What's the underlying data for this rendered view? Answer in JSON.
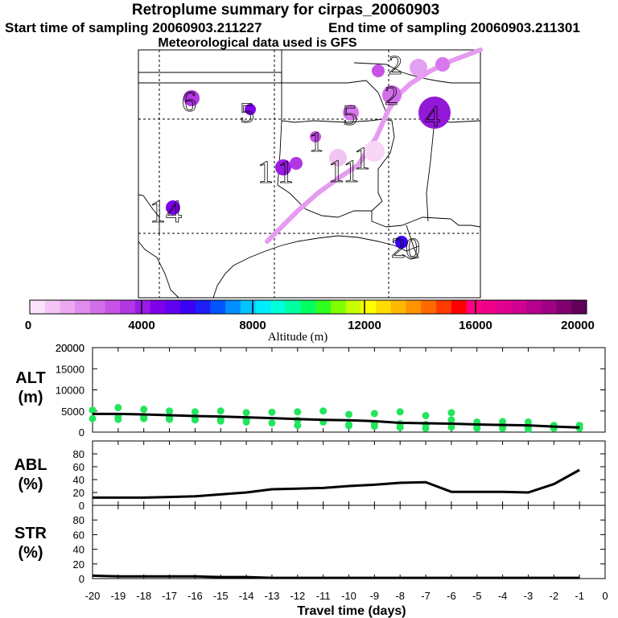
{
  "header": {
    "title": "Retroplume summary for cirpas_20060903",
    "start_time": "Start time of sampling 20060903.211227",
    "end_time": "End time of sampling 20060903.211301",
    "met_data": "Meteorological data used is GFS"
  },
  "map": {
    "plume_color": "#e59cf0",
    "day_labels": [
      {
        "text": "2"
      },
      {
        "text": "2"
      },
      {
        "text": "6"
      },
      {
        "text": "5"
      },
      {
        "text": "5"
      },
      {
        "text": "4"
      },
      {
        "text": "1"
      },
      {
        "text": "1"
      },
      {
        "text": "11"
      },
      {
        "text": "14"
      },
      {
        "text": "1"
      },
      {
        "text": "1"
      },
      {
        "text": "20"
      }
    ]
  },
  "colorbar": {
    "tick_labels": [
      "0",
      "4000",
      "8000",
      "12000",
      "16000",
      "20000"
    ],
    "title": "Altitude (m)",
    "colors": [
      "#fbe3fb",
      "#f3c6f5",
      "#eba9f1",
      "#e08ced",
      "#d36fe9",
      "#c653e6",
      "#b237e3",
      "#9b1ce6",
      "#7f00ea",
      "#6000f0",
      "#3b00f6",
      "#1e1ef8",
      "#0055ff",
      "#0090ff",
      "#00c4ff",
      "#00ecff",
      "#00ffd8",
      "#00ffa0",
      "#00ff60",
      "#30ff20",
      "#80ff00",
      "#c8ff00",
      "#ffff00",
      "#ffdc00",
      "#ffb800",
      "#ff9400",
      "#ff6a00",
      "#ff3c00",
      "#ff0000",
      "#ff0080",
      "#f0008a",
      "#e2008e",
      "#d00090",
      "#b80090",
      "#a00086",
      "#800070",
      "#600058"
    ]
  },
  "chart_data": [
    {
      "type": "line",
      "name": "ALT",
      "ylabel": "ALT\n(m)",
      "ylabel_line1": "ALT",
      "ylabel_line2": "(m)",
      "ylim": [
        0,
        20000
      ],
      "yticks": [
        "0",
        "5000",
        "10000",
        "15000",
        "20000"
      ],
      "x": [
        -20,
        -19,
        -18,
        -17,
        -16,
        -15,
        -14,
        -13,
        -12,
        -11,
        -10,
        -9,
        -8,
        -7,
        -6,
        -5,
        -4,
        -3,
        -2,
        -1
      ],
      "values": [
        4300,
        4300,
        4200,
        4000,
        3800,
        3700,
        3500,
        3300,
        3100,
        2900,
        2800,
        2600,
        2200,
        2100,
        2000,
        1800,
        1700,
        1600,
        1300,
        1100
      ],
      "scatter_color": "#22e55c",
      "scatter": [
        [
          -20,
          5200
        ],
        [
          -20,
          3200
        ],
        [
          -19,
          5800
        ],
        [
          -19,
          3600
        ],
        [
          -19,
          3000
        ],
        [
          -18,
          5400
        ],
        [
          -18,
          3200
        ],
        [
          -18,
          3600
        ],
        [
          -17,
          5000
        ],
        [
          -17,
          3000
        ],
        [
          -17,
          3400
        ],
        [
          -16,
          4800
        ],
        [
          -16,
          2900
        ],
        [
          -16,
          3300
        ],
        [
          -15,
          5000
        ],
        [
          -15,
          2600
        ],
        [
          -15,
          3200
        ],
        [
          -14,
          4600
        ],
        [
          -14,
          2400
        ],
        [
          -14,
          3000
        ],
        [
          -13,
          4700
        ],
        [
          -13,
          2200
        ],
        [
          -12,
          4800
        ],
        [
          -12,
          1600
        ],
        [
          -12,
          2800
        ],
        [
          -11,
          5000
        ],
        [
          -11,
          2400
        ],
        [
          -10,
          4200
        ],
        [
          -10,
          1800
        ],
        [
          -10,
          1500
        ],
        [
          -9,
          4400
        ],
        [
          -9,
          2000
        ],
        [
          -9,
          1400
        ],
        [
          -8,
          4800
        ],
        [
          -8,
          2000
        ],
        [
          -8,
          1100
        ],
        [
          -7,
          3900
        ],
        [
          -7,
          1800
        ],
        [
          -7,
          900
        ],
        [
          -6,
          4600
        ],
        [
          -6,
          2900
        ],
        [
          -6,
          1200
        ],
        [
          -5,
          2400
        ],
        [
          -5,
          1200
        ],
        [
          -5,
          900
        ],
        [
          -4,
          2500
        ],
        [
          -4,
          1500
        ],
        [
          -4,
          900
        ],
        [
          -3,
          2400
        ],
        [
          -3,
          1300
        ],
        [
          -3,
          700
        ],
        [
          -2,
          1600
        ],
        [
          -2,
          900
        ],
        [
          -1,
          1600
        ],
        [
          -1,
          900
        ]
      ]
    },
    {
      "type": "line",
      "name": "ABL",
      "ylabel_line1": "ABL",
      "ylabel_line2": "(%)",
      "ylim": [
        0,
        100
      ],
      "yticks": [
        "0",
        "20",
        "40",
        "60",
        "80"
      ],
      "x": [
        -20,
        -19,
        -18,
        -17,
        -16,
        -15,
        -14,
        -13,
        -12,
        -11,
        -10,
        -9,
        -8,
        -7,
        -6,
        -5,
        -4,
        -3,
        -2,
        -1
      ],
      "values": [
        12,
        12,
        12,
        13,
        14,
        17,
        20,
        25,
        26,
        27,
        30,
        32,
        35,
        36,
        21,
        21,
        21,
        20,
        33,
        55
      ]
    },
    {
      "type": "line",
      "name": "STR",
      "ylabel_line1": "STR",
      "ylabel_line2": "(%)",
      "ylim": [
        0,
        100
      ],
      "yticks": [
        "0",
        "20",
        "40",
        "60",
        "80"
      ],
      "x": [
        -20,
        -19,
        -18,
        -17,
        -16,
        -15,
        -14,
        -13,
        -12,
        -11,
        -10,
        -9,
        -8,
        -7,
        -6,
        -5,
        -4,
        -3,
        -2,
        -1
      ],
      "values": [
        4,
        3,
        3,
        3,
        3,
        2,
        2,
        1,
        1,
        1,
        1,
        1,
        1,
        1,
        1,
        1,
        1,
        1,
        1,
        1
      ]
    }
  ],
  "x_axis": {
    "tick_labels": [
      "-20",
      "-19",
      "-18",
      "-17",
      "-16",
      "-15",
      "-14",
      "-13",
      "-12",
      "-11",
      "-10",
      "-9",
      "-8",
      "-7",
      "-6",
      "-5",
      "-4",
      "-3",
      "-2",
      "-1",
      "0"
    ],
    "title": "Travel time (days)"
  }
}
